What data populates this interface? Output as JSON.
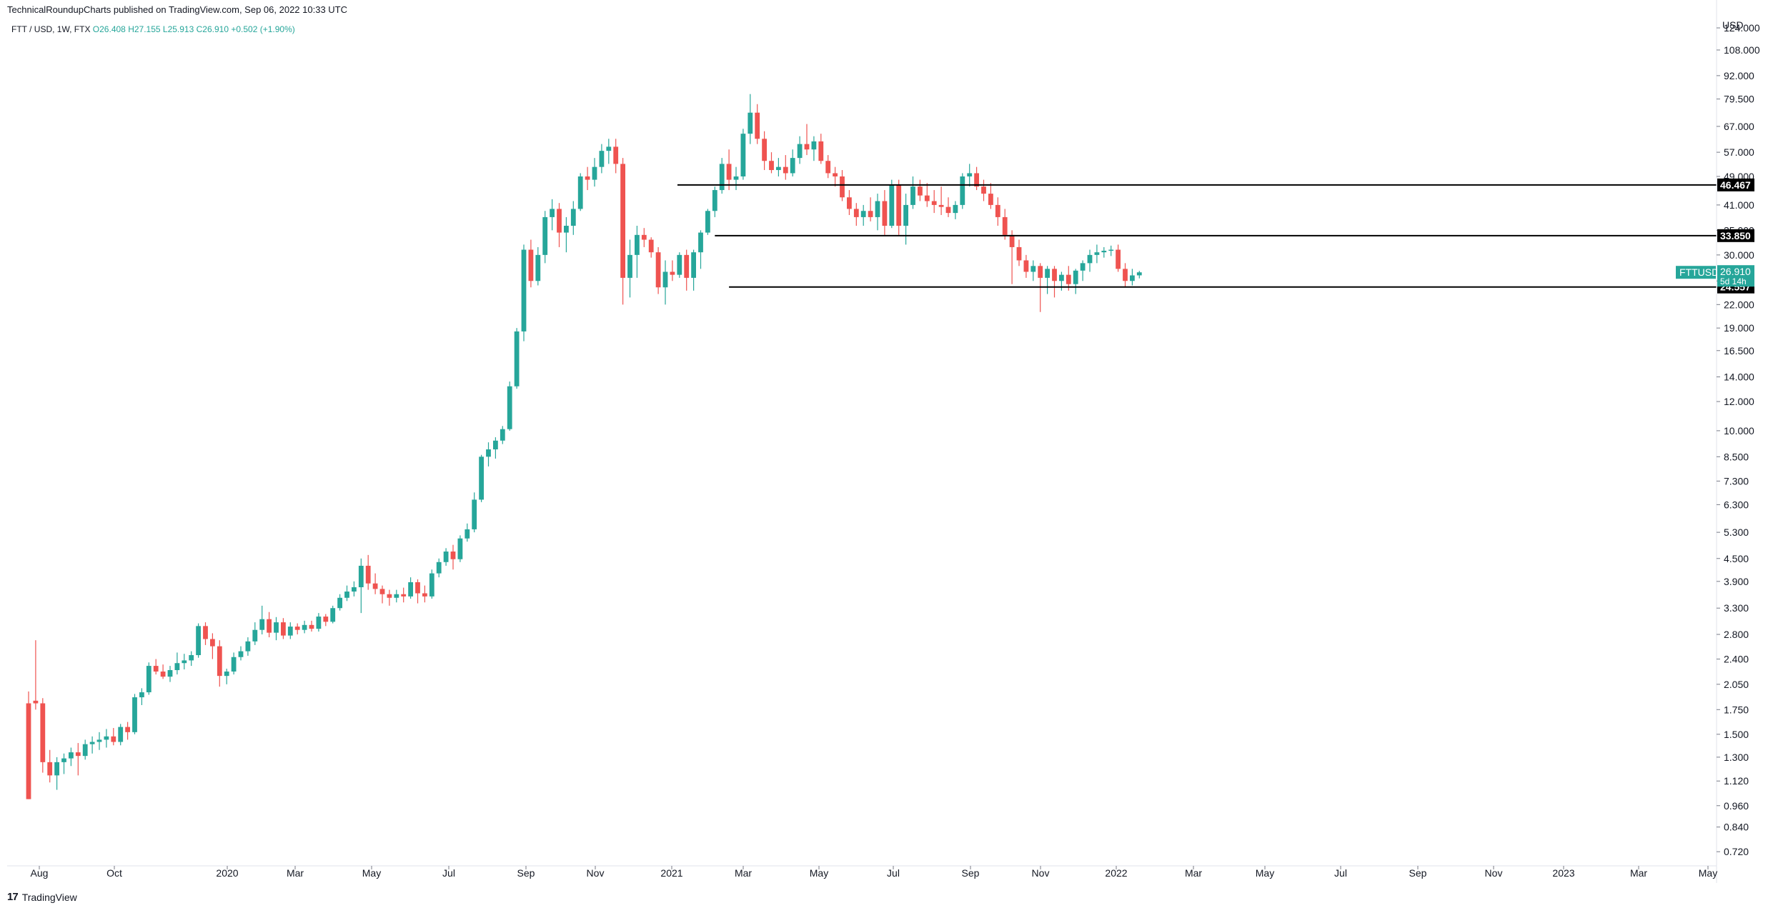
{
  "header": {
    "publisher": "TechnicalRoundupCharts published on TradingView.com, Sep 06, 2022 10:33 UTC"
  },
  "symbol_line": {
    "symbol": "FTT / USD, 1W, FTX",
    "open": "O26.408",
    "high": "H27.155",
    "low": "L25.913",
    "close": "C26.910",
    "change": "+0.502 (+1.90%)"
  },
  "footer": {
    "logo_text": "TradingView"
  },
  "colors": {
    "up": "#26a69a",
    "down": "#ef5350",
    "level_line": "#000000",
    "axis": "#787b86",
    "tag_dark": "#000000",
    "ticker_tag": "#26a69a"
  },
  "chart_data": {
    "type": "candlestick",
    "scale": "log",
    "currency_label": "USD",
    "y_ticks": [
      "124.000",
      "108.000",
      "92.000",
      "79.500",
      "67.000",
      "57.000",
      "49.000",
      "41.000",
      "35.000",
      "30.000",
      "25.500",
      "22.000",
      "19.000",
      "16.500",
      "14.000",
      "12.000",
      "10.000",
      "8.500",
      "7.300",
      "6.300",
      "5.300",
      "4.500",
      "3.900",
      "3.300",
      "2.800",
      "2.400",
      "2.050",
      "1.750",
      "1.500",
      "1.300",
      "1.120",
      "0.960",
      "0.840",
      "0.720"
    ],
    "x_ticks": [
      "Aug",
      "Oct",
      "2020",
      "Mar",
      "May",
      "Jul",
      "Sep",
      "Nov",
      "2021",
      "Mar",
      "May",
      "Jul",
      "Sep",
      "Nov",
      "2022",
      "Mar",
      "May",
      "Jul",
      "Sep",
      "Nov",
      "2023",
      "Mar",
      "May"
    ],
    "ylim": [
      0.68,
      135
    ],
    "horizontal_levels": [
      {
        "value": 46.467,
        "label": "46.467",
        "from": "2021-05-01"
      },
      {
        "value": 33.85,
        "label": "33.850",
        "from": "2021-06-07"
      },
      {
        "value": 24.557,
        "label": "24.557",
        "from": "2021-06-21"
      }
    ],
    "last_price": {
      "value": 26.91,
      "label": "26.910",
      "countdown": "5d 14h",
      "ticker": "FTTUSD"
    },
    "candles": [
      [
        1.82,
        1.96,
        1.0,
        1.0
      ],
      [
        1.85,
        2.7,
        1.75,
        1.82
      ],
      [
        1.82,
        1.88,
        1.18,
        1.26
      ],
      [
        1.26,
        1.36,
        1.11,
        1.16
      ],
      [
        1.16,
        1.3,
        1.06,
        1.26
      ],
      [
        1.26,
        1.33,
        1.17,
        1.29
      ],
      [
        1.29,
        1.38,
        1.23,
        1.34
      ],
      [
        1.34,
        1.42,
        1.16,
        1.31
      ],
      [
        1.31,
        1.45,
        1.28,
        1.41
      ],
      [
        1.41,
        1.48,
        1.33,
        1.43
      ],
      [
        1.43,
        1.52,
        1.36,
        1.45
      ],
      [
        1.45,
        1.55,
        1.38,
        1.48
      ],
      [
        1.48,
        1.56,
        1.4,
        1.43
      ],
      [
        1.43,
        1.6,
        1.4,
        1.57
      ],
      [
        1.57,
        1.62,
        1.45,
        1.52
      ],
      [
        1.52,
        1.93,
        1.5,
        1.89
      ],
      [
        1.89,
        2.0,
        1.8,
        1.95
      ],
      [
        1.95,
        2.35,
        1.92,
        2.3
      ],
      [
        2.3,
        2.4,
        2.18,
        2.22
      ],
      [
        2.22,
        2.32,
        2.12,
        2.15
      ],
      [
        2.15,
        2.3,
        2.08,
        2.24
      ],
      [
        2.24,
        2.5,
        2.18,
        2.34
      ],
      [
        2.34,
        2.48,
        2.25,
        2.38
      ],
      [
        2.38,
        2.52,
        2.3,
        2.46
      ],
      [
        2.46,
        3.0,
        2.42,
        2.95
      ],
      [
        2.95,
        3.02,
        2.62,
        2.72
      ],
      [
        2.72,
        2.82,
        2.4,
        2.6
      ],
      [
        2.6,
        2.7,
        2.02,
        2.16
      ],
      [
        2.16,
        2.26,
        2.05,
        2.22
      ],
      [
        2.22,
        2.5,
        2.18,
        2.43
      ],
      [
        2.43,
        2.6,
        2.38,
        2.52
      ],
      [
        2.52,
        2.75,
        2.45,
        2.68
      ],
      [
        2.68,
        3.02,
        2.62,
        2.88
      ],
      [
        2.88,
        3.35,
        2.8,
        3.08
      ],
      [
        3.08,
        3.22,
        2.75,
        2.83
      ],
      [
        2.83,
        3.12,
        2.7,
        3.02
      ],
      [
        3.02,
        3.1,
        2.72,
        2.78
      ],
      [
        2.78,
        3.02,
        2.72,
        2.94
      ],
      [
        2.94,
        3.0,
        2.8,
        2.88
      ],
      [
        2.88,
        3.05,
        2.82,
        2.97
      ],
      [
        2.97,
        3.05,
        2.85,
        2.9
      ],
      [
        2.9,
        3.2,
        2.85,
        3.13
      ],
      [
        3.13,
        3.18,
        2.95,
        3.03
      ],
      [
        3.03,
        3.35,
        3.0,
        3.3
      ],
      [
        3.3,
        3.6,
        3.25,
        3.52
      ],
      [
        3.52,
        3.8,
        3.45,
        3.66
      ],
      [
        3.66,
        3.9,
        3.55,
        3.76
      ],
      [
        3.76,
        4.5,
        3.2,
        4.3
      ],
      [
        4.3,
        4.6,
        3.7,
        3.85
      ],
      [
        3.85,
        4.1,
        3.6,
        3.72
      ],
      [
        3.72,
        3.8,
        3.4,
        3.6
      ],
      [
        3.6,
        3.7,
        3.35,
        3.52
      ],
      [
        3.52,
        3.7,
        3.42,
        3.6
      ],
      [
        3.6,
        3.75,
        3.42,
        3.55
      ],
      [
        3.55,
        4.0,
        3.5,
        3.88
      ],
      [
        3.88,
        3.95,
        3.4,
        3.62
      ],
      [
        3.62,
        3.8,
        3.42,
        3.55
      ],
      [
        3.55,
        4.2,
        3.5,
        4.1
      ],
      [
        4.1,
        4.5,
        4.0,
        4.4
      ],
      [
        4.4,
        4.8,
        4.3,
        4.7
      ],
      [
        4.7,
        4.9,
        4.2,
        4.48
      ],
      [
        4.48,
        5.2,
        4.4,
        5.1
      ],
      [
        5.1,
        5.6,
        5.0,
        5.4
      ],
      [
        5.4,
        6.8,
        5.3,
        6.5
      ],
      [
        6.5,
        8.6,
        6.4,
        8.5
      ],
      [
        8.5,
        9.3,
        8.0,
        8.9
      ],
      [
        8.9,
        9.6,
        8.4,
        9.4
      ],
      [
        9.4,
        10.3,
        9.2,
        10.1
      ],
      [
        10.1,
        13.6,
        10.0,
        13.2
      ],
      [
        13.2,
        19.0,
        13.0,
        18.6
      ],
      [
        18.6,
        32.0,
        17.5,
        31.0
      ],
      [
        31.0,
        33.0,
        24.5,
        25.5
      ],
      [
        25.5,
        31.5,
        24.8,
        30.0
      ],
      [
        30.0,
        39.5,
        28.5,
        38.0
      ],
      [
        38.0,
        42.5,
        35.0,
        40.0
      ],
      [
        40.0,
        41.5,
        31.5,
        34.5
      ],
      [
        34.5,
        38.0,
        30.5,
        36.0
      ],
      [
        36.0,
        42.0,
        34.0,
        40.0
      ],
      [
        40.0,
        50.0,
        39.5,
        49.0
      ],
      [
        49.0,
        52.0,
        45.0,
        48.0
      ],
      [
        48.0,
        55.0,
        46.0,
        52.0
      ],
      [
        52.0,
        60.0,
        50.0,
        57.5
      ],
      [
        57.5,
        62.0,
        53.0,
        59.0
      ],
      [
        59.0,
        62.0,
        50.0,
        53.0
      ],
      [
        53.0,
        55.0,
        22.0,
        26.0
      ],
      [
        26.0,
        33.0,
        23.0,
        30.0
      ],
      [
        30.0,
        36.0,
        26.0,
        34.0
      ],
      [
        34.0,
        35.5,
        31.5,
        33.0
      ],
      [
        33.0,
        33.5,
        29.5,
        30.5
      ],
      [
        30.5,
        31.5,
        23.5,
        24.5
      ],
      [
        24.5,
        29.0,
        22.0,
        27.0
      ],
      [
        27.0,
        29.0,
        25.5,
        26.5
      ],
      [
        26.5,
        30.5,
        26.0,
        30.0
      ],
      [
        30.0,
        31.0,
        24.0,
        26.0
      ],
      [
        26.0,
        31.0,
        24.0,
        30.5
      ],
      [
        30.5,
        35.0,
        27.5,
        34.5
      ],
      [
        34.5,
        40.0,
        34.0,
        39.5
      ],
      [
        39.5,
        46.0,
        38.0,
        45.0
      ],
      [
        45.0,
        55.0,
        44.0,
        53.0
      ],
      [
        53.0,
        58.0,
        45.0,
        48.0
      ],
      [
        48.0,
        52.0,
        45.0,
        49.0
      ],
      [
        49.0,
        66.0,
        48.0,
        64.0
      ],
      [
        64.0,
        82.0,
        60.0,
        73.0
      ],
      [
        73.0,
        77.0,
        60.0,
        62.0
      ],
      [
        62.0,
        65.0,
        51.0,
        54.0
      ],
      [
        54.0,
        57.0,
        50.0,
        51.0
      ],
      [
        51.0,
        55.0,
        49.0,
        52.0
      ],
      [
        52.0,
        56.0,
        48.0,
        50.0
      ],
      [
        50.0,
        58.0,
        49.0,
        55.0
      ],
      [
        55.0,
        63.0,
        53.0,
        60.0
      ],
      [
        60.0,
        68.0,
        56.0,
        58.0
      ],
      [
        58.0,
        63.0,
        54.0,
        61.0
      ],
      [
        61.0,
        64.0,
        53.0,
        54.0
      ],
      [
        54.0,
        56.0,
        48.5,
        50.0
      ],
      [
        50.0,
        52.0,
        46.0,
        49.0
      ],
      [
        49.0,
        51.0,
        42.0,
        43.0
      ],
      [
        43.0,
        45.0,
        38.5,
        40.0
      ],
      [
        40.0,
        41.5,
        36.0,
        38.0
      ],
      [
        38.0,
        41.0,
        36.0,
        39.5
      ],
      [
        39.5,
        43.0,
        37.0,
        38.0
      ],
      [
        38.0,
        44.0,
        35.0,
        42.0
      ],
      [
        42.0,
        45.0,
        34.0,
        36.0
      ],
      [
        36.0,
        48.0,
        35.5,
        46.5
      ],
      [
        46.5,
        48.0,
        34.0,
        36.0
      ],
      [
        36.0,
        44.0,
        32.0,
        41.0
      ],
      [
        41.0,
        49.0,
        40.0,
        46.0
      ],
      [
        46.0,
        48.0,
        42.0,
        43.5
      ],
      [
        43.5,
        47.0,
        40.5,
        42.0
      ],
      [
        42.0,
        45.0,
        39.0,
        41.0
      ],
      [
        41.0,
        46.0,
        38.5,
        40.5
      ],
      [
        40.5,
        43.0,
        38.0,
        39.0
      ],
      [
        39.0,
        42.0,
        37.5,
        41.0
      ],
      [
        41.0,
        50.0,
        40.0,
        49.0
      ],
      [
        49.0,
        53.0,
        46.0,
        50.0
      ],
      [
        50.0,
        52.0,
        45.0,
        46.0
      ],
      [
        46.0,
        48.0,
        42.0,
        44.0
      ],
      [
        44.0,
        47.0,
        40.0,
        41.0
      ],
      [
        41.0,
        43.0,
        36.0,
        38.0
      ],
      [
        38.0,
        40.0,
        33.0,
        34.0
      ],
      [
        34.0,
        35.0,
        25.0,
        31.5
      ],
      [
        31.5,
        33.0,
        28.0,
        29.0
      ],
      [
        29.0,
        30.0,
        26.0,
        27.0
      ],
      [
        27.0,
        29.0,
        25.5,
        28.0
      ],
      [
        28.0,
        28.5,
        21.0,
        26.0
      ],
      [
        26.0,
        28.0,
        23.5,
        27.5
      ],
      [
        27.5,
        28.0,
        23.0,
        25.5
      ],
      [
        25.5,
        27.0,
        24.0,
        26.5
      ],
      [
        26.5,
        28.0,
        24.0,
        25.0
      ],
      [
        25.0,
        27.5,
        23.5,
        27.2
      ],
      [
        27.2,
        29.0,
        25.5,
        28.5
      ],
      [
        28.5,
        31.0,
        27.0,
        30.0
      ],
      [
        30.0,
        32.0,
        28.5,
        30.5
      ],
      [
        30.5,
        31.5,
        29.5,
        30.8
      ],
      [
        30.8,
        31.8,
        29.8,
        31.0
      ],
      [
        31.0,
        32.0,
        27.0,
        27.5
      ],
      [
        27.5,
        28.5,
        24.5,
        25.5
      ],
      [
        25.5,
        27.5,
        24.8,
        26.4
      ],
      [
        26.408,
        27.155,
        25.913,
        26.91
      ]
    ]
  }
}
